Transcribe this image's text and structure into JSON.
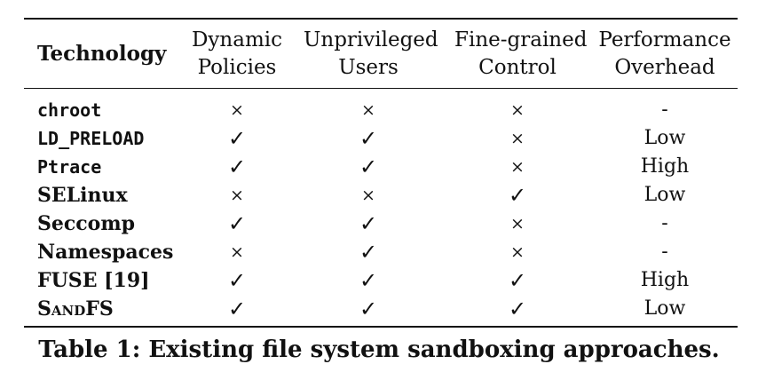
{
  "table": {
    "headers": {
      "technology": "Technology",
      "dynamic_policies": [
        "Dynamic",
        "Policies"
      ],
      "unprivileged_users": [
        "Unprivileged",
        "Users"
      ],
      "fine_grained_control": [
        "Fine-grained",
        "Control"
      ],
      "performance_overhead": [
        "Performance",
        "Overhead"
      ]
    },
    "rows": [
      {
        "technology": "chroot",
        "dynamic_policies": "×",
        "unprivileged_users": "×",
        "fine_grained_control": "×",
        "performance_overhead": "-"
      },
      {
        "technology": "LD_PRELOAD",
        "dynamic_policies": "✓",
        "unprivileged_users": "✓",
        "fine_grained_control": "×",
        "performance_overhead": "Low"
      },
      {
        "technology": "Ptrace",
        "dynamic_policies": "✓",
        "unprivileged_users": "✓",
        "fine_grained_control": "×",
        "performance_overhead": "High"
      },
      {
        "technology": "SELinux",
        "dynamic_policies": "×",
        "unprivileged_users": "×",
        "fine_grained_control": "✓",
        "performance_overhead": "Low"
      },
      {
        "technology": "Seccomp",
        "dynamic_policies": "✓",
        "unprivileged_users": "✓",
        "fine_grained_control": "×",
        "performance_overhead": "-"
      },
      {
        "technology": "Namespaces",
        "dynamic_policies": "×",
        "unprivileged_users": "✓",
        "fine_grained_control": "×",
        "performance_overhead": "-"
      },
      {
        "technology": "FUSE [19]",
        "dynamic_policies": "✓",
        "unprivileged_users": "✓",
        "fine_grained_control": "✓",
        "performance_overhead": "High"
      },
      {
        "technology": "SandFS",
        "dynamic_policies": "✓",
        "unprivileged_users": "✓",
        "fine_grained_control": "✓",
        "performance_overhead": "Low"
      }
    ]
  },
  "caption": "Table 1: Existing file system sandboxing approaches."
}
